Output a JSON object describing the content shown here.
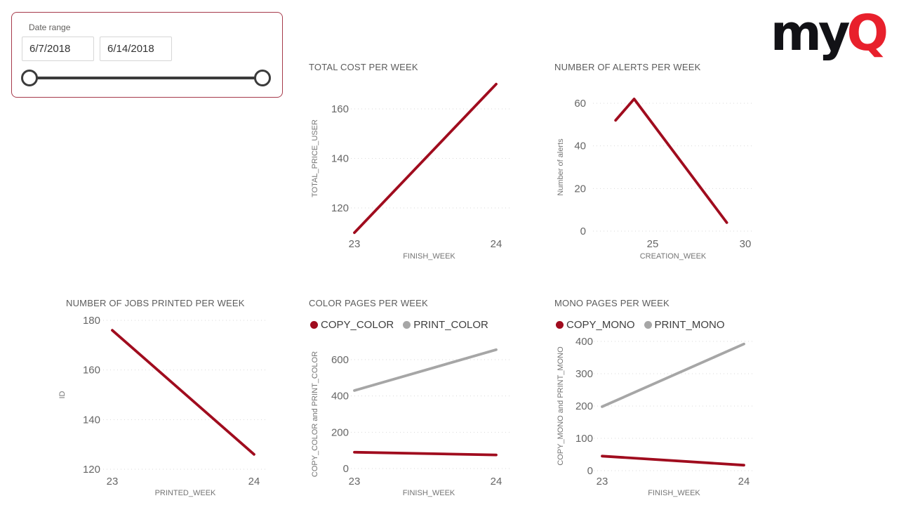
{
  "slicer": {
    "label": "Date range",
    "start_date": "6/7/2018",
    "end_date": "6/14/2018"
  },
  "logo": {
    "text_black": "my",
    "text_red": "Q"
  },
  "colors": {
    "series_red": "#A00C1E",
    "series_gray": "#A6A6A6",
    "logo_red": "#E8202C",
    "slicer_border": "#A63A4B",
    "slider": "#3B3B3B",
    "gridline": "#D9D9D9"
  },
  "chart_data": [
    {
      "type": "line",
      "title": "TOTAL COST PER WEEK",
      "xlabel": "FINISH_WEEK",
      "ylabel": "TOTAL_PRICE_USER",
      "xticks": [
        23,
        24
      ],
      "yticks": [
        120,
        140,
        160
      ],
      "xlim": [
        23,
        24
      ],
      "ylim": [
        120,
        160
      ],
      "grid": true,
      "legend": false,
      "series": [
        {
          "name": "TOTAL_PRICE_USER",
          "color": "#A00C1E",
          "x": [
            23,
            24
          ],
          "values": [
            110,
            170
          ]
        }
      ]
    },
    {
      "type": "line",
      "title": "NUMBER OF ALERTS PER WEEK",
      "xlabel": "CREATION_WEEK",
      "ylabel": "Number of alerts",
      "xticks": [
        25,
        30
      ],
      "yticks": [
        0,
        20,
        40,
        60
      ],
      "xlim": [
        25,
        30
      ],
      "ylim": [
        0,
        60
      ],
      "grid": true,
      "legend": false,
      "series": [
        {
          "name": "Number of alerts",
          "color": "#A00C1E",
          "x": [
            23,
            24,
            29
          ],
          "values": [
            52,
            62,
            4
          ]
        }
      ]
    },
    {
      "type": "line",
      "title": "NUMBER OF JOBS PRINTED PER WEEK",
      "xlabel": "PRINTED_WEEK",
      "ylabel": "ID",
      "xticks": [
        23,
        24
      ],
      "yticks": [
        120,
        140,
        160,
        180
      ],
      "xlim": [
        23,
        24
      ],
      "ylim": [
        120,
        180
      ],
      "grid": true,
      "legend": false,
      "series": [
        {
          "name": "ID",
          "color": "#A00C1E",
          "x": [
            23,
            24
          ],
          "values": [
            176,
            126
          ]
        }
      ]
    },
    {
      "type": "line",
      "title": "COLOR PAGES PER WEEK",
      "xlabel": "FINISH_WEEK",
      "ylabel": "COPY_COLOR and PRINT_COLOR",
      "xticks": [
        23,
        24
      ],
      "yticks": [
        0,
        200,
        400,
        600
      ],
      "xlim": [
        23,
        24
      ],
      "ylim": [
        0,
        600
      ],
      "grid": true,
      "legend": true,
      "series": [
        {
          "name": "COPY_COLOR",
          "color": "#A00C1E",
          "x": [
            23,
            24
          ],
          "values": [
            90,
            75
          ]
        },
        {
          "name": "PRINT_COLOR",
          "color": "#A6A6A6",
          "x": [
            23,
            24
          ],
          "values": [
            430,
            655
          ]
        }
      ]
    },
    {
      "type": "line",
      "title": "MONO PAGES PER WEEK",
      "xlabel": "FINISH_WEEK",
      "ylabel": "COPY_MONO and PRINT_MONO",
      "xticks": [
        23,
        24
      ],
      "yticks": [
        0,
        100,
        200,
        300,
        400
      ],
      "xlim": [
        23,
        24
      ],
      "ylim": [
        0,
        400
      ],
      "grid": true,
      "legend": true,
      "series": [
        {
          "name": "COPY_MONO",
          "color": "#A00C1E",
          "x": [
            23,
            24
          ],
          "values": [
            45,
            17
          ]
        },
        {
          "name": "PRINT_MONO",
          "color": "#A6A6A6",
          "x": [
            23,
            24
          ],
          "values": [
            198,
            392
          ]
        }
      ]
    }
  ]
}
